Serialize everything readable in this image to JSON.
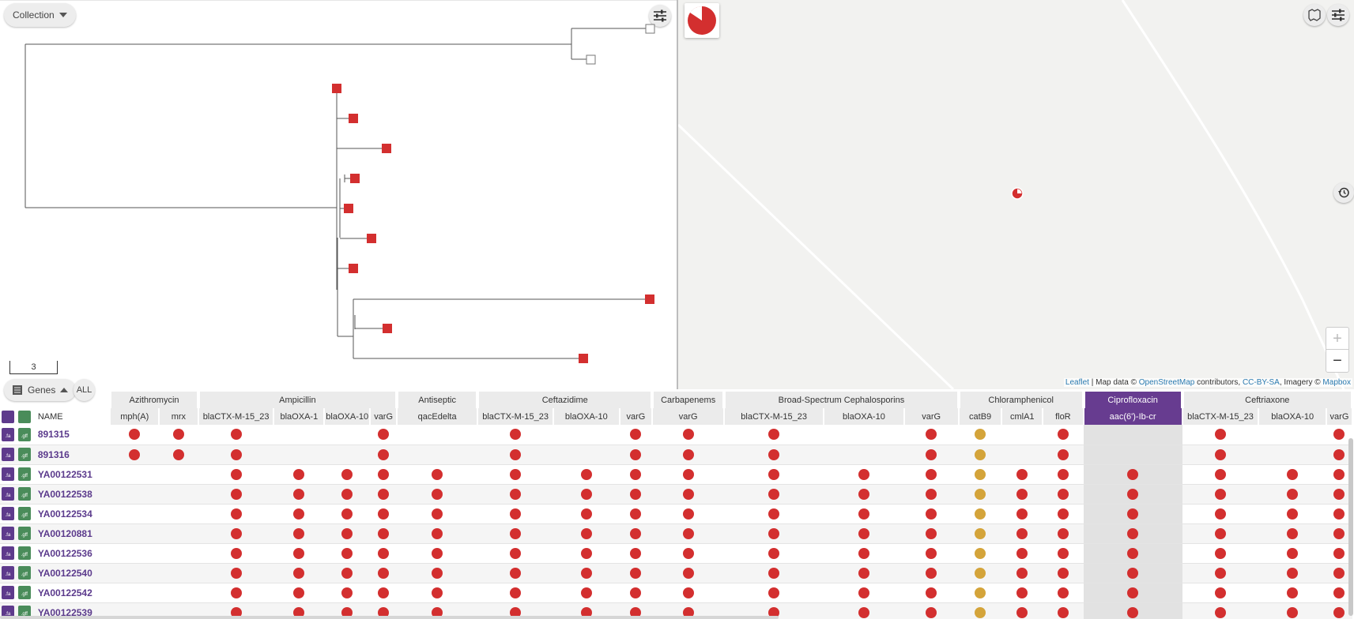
{
  "tree": {
    "collection_label": "Collection",
    "scale_value": "3",
    "node_color": "#d32f2f",
    "empty_node_color": "#ffffff"
  },
  "map": {
    "attribution": {
      "leaflet": "Leaflet",
      "sep1": " | Map data © ",
      "osm": "OpenStreetMap",
      "sep2": " contributors, ",
      "cc": "CC-BY-SA",
      "sep3": ", Imagery © ",
      "mapbox": "Mapbox"
    },
    "zoom_in": "+",
    "zoom_out": "−"
  },
  "table_bar": {
    "genes_label": "Genes",
    "all_label": "ALL"
  },
  "colors": {
    "present": "#d32f2f",
    "partial": "#d4a43a",
    "accent": "#673c90"
  },
  "table": {
    "name_header": "NAME",
    "groups": [
      {
        "label": "Azithromycin",
        "span": 2
      },
      {
        "label": "Ampicillin",
        "span": 4
      },
      {
        "label": "Antiseptic",
        "span": 1
      },
      {
        "label": "Ceftazidime",
        "span": 3
      },
      {
        "label": "Carbapenems",
        "span": 1
      },
      {
        "label": "Broad-Spectrum Cephalosporins",
        "span": 3
      },
      {
        "label": "Chloramphenicol",
        "span": 3
      },
      {
        "label": "Ciprofloxacin",
        "span": 1,
        "active": true
      },
      {
        "label": "Ceftriaxone",
        "span": 3
      }
    ],
    "columns": [
      "mph(A)",
      "mrx",
      "blaCTX-M-15_23",
      "blaOXA-1",
      "blaOXA-10",
      "varG",
      "qacEdelta",
      "blaCTX-M-15_23",
      "blaOXA-10",
      "varG",
      "varG",
      "blaCTX-M-15_23",
      "blaOXA-10",
      "varG",
      "catB9",
      "cmlA1",
      "floR",
      "aac(6')-Ib-cr",
      "blaCTX-M-15_23",
      "blaOXA-10",
      "varG"
    ],
    "active_column": 17,
    "rows": [
      {
        "name": "891315",
        "cells": "RR R  R R  R R  R  R  R  "
      },
      {
        "name": "891316",
        "cells": "RR R  R R  R R  R  R  R  "
      },
      {
        "name": "YA00122531",
        "cells": ""
      },
      {
        "name": "YA00122538",
        "cells": ""
      },
      {
        "name": "YA00122534",
        "cells": ""
      },
      {
        "name": "YA00120881",
        "cells": ""
      },
      {
        "name": "YA00122536",
        "cells": ""
      },
      {
        "name": "YA00122540",
        "cells": ""
      },
      {
        "name": "YA00122542",
        "cells": ""
      },
      {
        "name": "YA00122539",
        "cells": ""
      }
    ],
    "row_patterns": {
      "891315": [
        "R",
        "R",
        "R",
        "",
        "",
        "R",
        "",
        "R",
        "",
        "R",
        "R",
        "R",
        "",
        "R",
        "Y",
        "",
        "R",
        "",
        "R",
        "",
        "R"
      ],
      "891316": [
        "R",
        "R",
        "R",
        "",
        "",
        "R",
        "",
        "R",
        "",
        "R",
        "R",
        "R",
        "",
        "R",
        "Y",
        "",
        "R",
        "",
        "R",
        "",
        "R"
      ],
      "full": [
        "",
        "",
        "R",
        "R",
        "R",
        "R",
        "R",
        "R",
        "R",
        "R",
        "R",
        "R",
        "R",
        "R",
        "Y",
        "R",
        "R",
        "R",
        "R",
        "R",
        "R"
      ]
    }
  }
}
